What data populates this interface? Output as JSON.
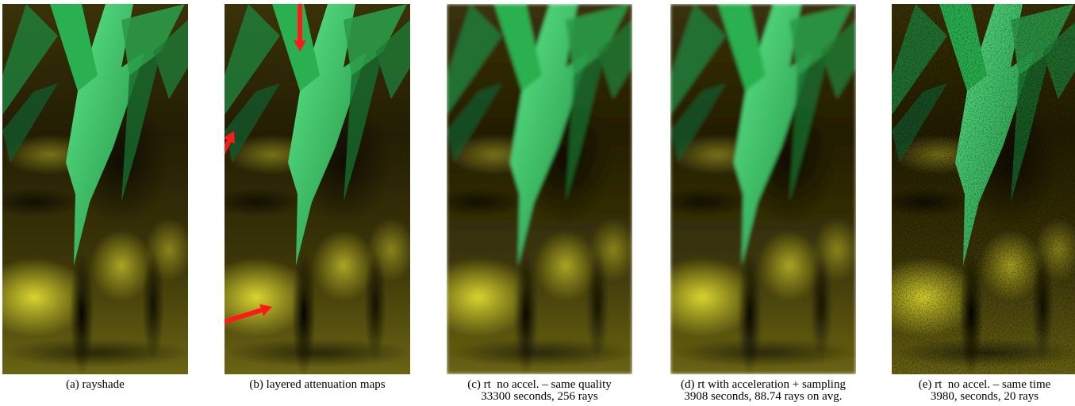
{
  "figure": {
    "panels": [
      {
        "caption": "(a) rayshade"
      },
      {
        "caption": "(b) layered attenuation maps"
      },
      {
        "caption": "(c) rt  no accel. – same quality",
        "detail": "33300 seconds, 256 rays"
      },
      {
        "caption": "(d) rt with acceleration + sampling",
        "detail": "3908 seconds, 88.74 rays on avg."
      },
      {
        "caption": "(e) rt  no accel. – same time",
        "detail": "3980, seconds, 20 rays"
      }
    ]
  }
}
